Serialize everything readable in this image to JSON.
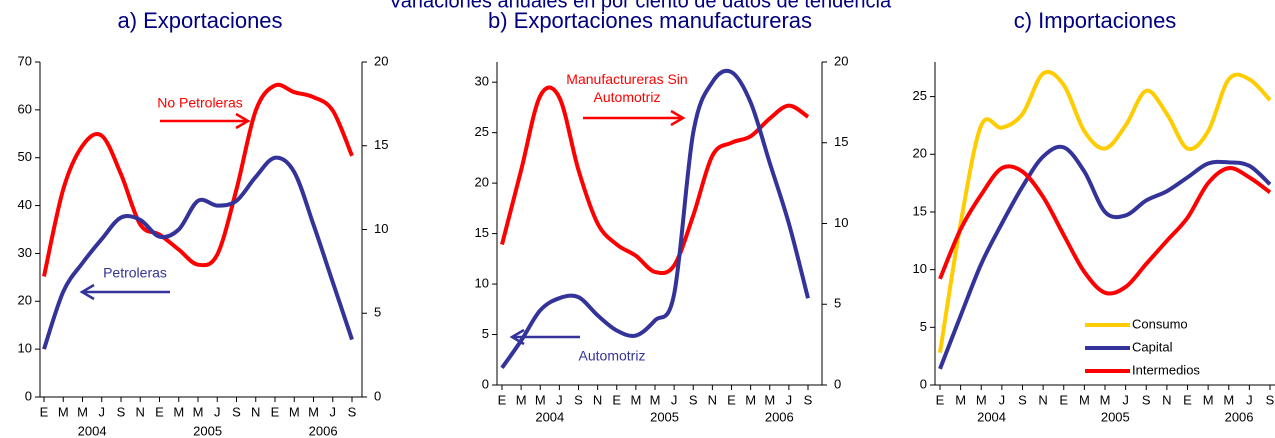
{
  "title": "Variaciones anuales en por ciento de datos de tendencia",
  "chart_data": [
    {
      "type": "line",
      "title": "a) Exportaciones",
      "categories": [
        "E",
        "M",
        "M",
        "J",
        "S",
        "N",
        "E",
        "M",
        "M",
        "J",
        "S",
        "N",
        "E",
        "M",
        "M",
        "J",
        "S"
      ],
      "x_group_labels": [
        "2004",
        "2005",
        "2006"
      ],
      "ylim": [
        0,
        70
      ],
      "yticks": [
        0,
        10,
        20,
        30,
        40,
        50,
        60,
        70
      ],
      "y2lim": [
        0,
        20
      ],
      "y2ticks": [
        0,
        5,
        10,
        15,
        20
      ],
      "series": [
        {
          "name": "No Petroleras",
          "color": "#ff0000",
          "axis": "y2",
          "values": [
            7.2,
            12.4,
            15.0,
            15.6,
            13.3,
            10.3,
            9.7,
            8.8,
            7.9,
            8.5,
            12.4,
            17.1,
            18.6,
            18.2,
            17.9,
            17.1,
            14.4
          ]
        },
        {
          "name": "Petroleras",
          "color": "#333399",
          "axis": "y",
          "values": [
            10,
            22,
            28,
            33,
            37.5,
            37,
            33.5,
            35,
            41,
            40,
            41,
            46,
            50,
            47,
            36,
            24,
            12
          ]
        }
      ]
    },
    {
      "type": "line",
      "title": "b) Exportaciones manufactureras",
      "categories": [
        "E",
        "M",
        "M",
        "J",
        "S",
        "N",
        "E",
        "M",
        "M",
        "J",
        "S",
        "N",
        "E",
        "M",
        "M",
        "J",
        "S"
      ],
      "x_group_labels": [
        "2004",
        "2005",
        "2006"
      ],
      "ylim": [
        0,
        32
      ],
      "yticks": [
        0,
        5,
        10,
        15,
        20,
        25,
        30
      ],
      "y2lim": [
        0,
        20
      ],
      "y2ticks": [
        0,
        5,
        10,
        15,
        20
      ],
      "series": [
        {
          "name": "Manufactureras Sin Automotriz",
          "color": "#ff0000",
          "axis": "y2",
          "values": [
            8.7,
            13.3,
            17.9,
            17.8,
            13.3,
            10.0,
            8.7,
            8.0,
            7.0,
            7.4,
            10.5,
            14.2,
            15.0,
            15.4,
            16.5,
            17.3,
            16.6
          ]
        },
        {
          "name": "Automotriz",
          "color": "#333399",
          "axis": "y",
          "values": [
            1.7,
            4.4,
            7.4,
            8.6,
            8.7,
            6.9,
            5.4,
            4.9,
            6.4,
            9,
            25,
            30,
            31,
            28,
            22,
            16,
            8.6
          ]
        }
      ]
    },
    {
      "type": "line",
      "title": "c) Importaciones",
      "categories": [
        "E",
        "M",
        "M",
        "J",
        "S",
        "N",
        "E",
        "M",
        "M",
        "J",
        "S",
        "N",
        "E",
        "M",
        "M",
        "J",
        "S"
      ],
      "x_group_labels": [
        "2004",
        "2005",
        "2006"
      ],
      "ylim": [
        0,
        28
      ],
      "yticks": [
        0,
        5,
        10,
        15,
        20,
        25
      ],
      "legend": "lower right",
      "series": [
        {
          "name": "Consumo",
          "color": "#ffcc00",
          "axis": "y",
          "values": [
            2.8,
            14,
            22.5,
            22.3,
            23.5,
            27,
            26,
            22,
            20.5,
            22.5,
            25.5,
            23.5,
            20.5,
            22,
            26.5,
            26.5,
            24.7
          ]
        },
        {
          "name": "Capital",
          "color": "#333399",
          "axis": "y",
          "values": [
            1.4,
            6,
            10.5,
            14,
            17.2,
            19.8,
            20.6,
            18.5,
            15,
            14.7,
            16,
            16.8,
            18,
            19.2,
            19.3,
            19,
            17.4
          ]
        },
        {
          "name": "Intermedios",
          "color": "#ff0000",
          "axis": "y",
          "values": [
            9.2,
            13.5,
            16.5,
            18.8,
            18.5,
            16.3,
            13,
            9.8,
            8.0,
            8.5,
            10.5,
            12.5,
            14.5,
            17.5,
            18.8,
            18,
            16.7
          ]
        }
      ]
    }
  ]
}
